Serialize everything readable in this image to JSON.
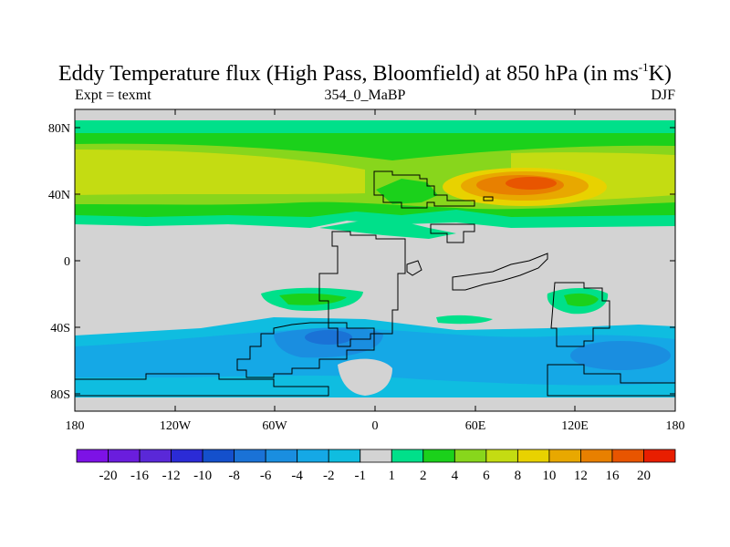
{
  "title": {
    "main": "Eddy Temperature flux (High Pass, Bloomfield) at 850 hPa (in ms",
    "sup": "-1",
    "end": "K)"
  },
  "subtitle_left": "Expt = texmt",
  "subtitle_center": "354_0_MaBP",
  "subtitle_right": "DJF",
  "axes": {
    "y_ticks": [
      "80N",
      "40N",
      "0",
      "40S",
      "80S"
    ],
    "x_ticks": [
      "180",
      "120W",
      "60W",
      "0",
      "60E",
      "120E",
      "180"
    ]
  },
  "colorbar": {
    "labels": [
      "-20",
      "-16",
      "-12",
      "-10",
      "-8",
      "-6",
      "-4",
      "-2",
      "-1",
      "1",
      "2",
      "4",
      "6",
      "8",
      "10",
      "12",
      "16",
      "20"
    ],
    "colors": [
      "#7d12e6",
      "#6a1ddd",
      "#5a28d8",
      "#2b2bd6",
      "#1450cc",
      "#1a72d6",
      "#1a8ee0",
      "#15a8e6",
      "#0fbde0",
      "#d3d3d3",
      "#00e08a",
      "#1bd11b",
      "#88d61c",
      "#c4dc12",
      "#e8d200",
      "#e8a800",
      "#e88000",
      "#e85500",
      "#e81e00"
    ]
  },
  "map_colors": {
    "background": "#d3d3d3",
    "c_1_2": "#00e08a",
    "c_2_4": "#1bd11b",
    "c_4_6": "#88d61c",
    "c_6_8": "#c4dc12",
    "c_8_10": "#e8d200",
    "c_10_12": "#e8a800",
    "c_12_16": "#e88000",
    "c_16_20": "#e85500",
    "n_1_2": "#0fbde0",
    "n_2_4": "#15a8e6",
    "n_4_6": "#1a8ee0",
    "n_6_8": "#1a72d6"
  }
}
